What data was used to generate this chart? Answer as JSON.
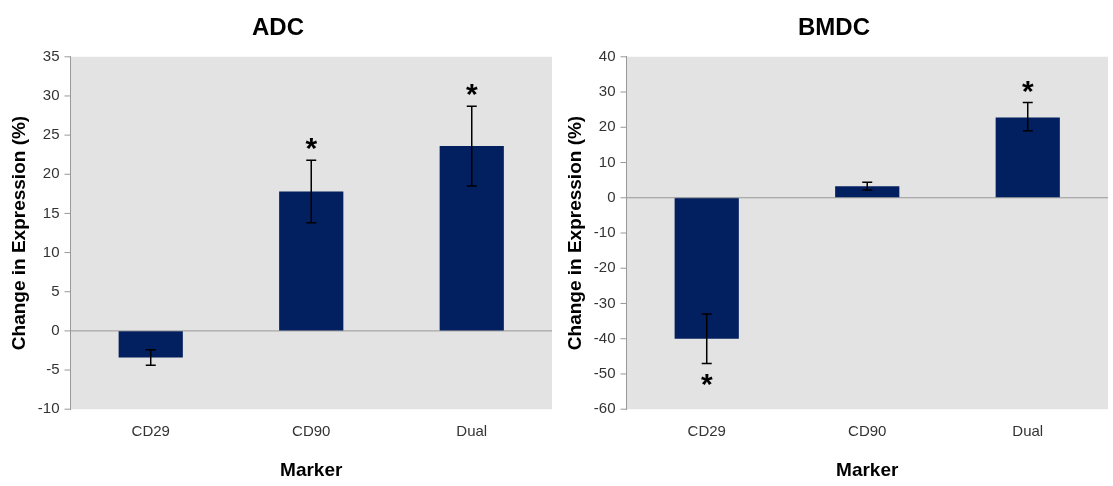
{
  "chart_data": [
    {
      "type": "bar",
      "title": "ADC",
      "xlabel": "Marker",
      "ylabel": "Change in Expression (%)",
      "categories": [
        "CD29",
        "CD90",
        "Dual"
      ],
      "values": [
        -3.4,
        17.8,
        23.6
      ],
      "errors": [
        [
          -4.4,
          -2.4
        ],
        [
          13.8,
          21.8
        ],
        [
          18.5,
          28.7
        ]
      ],
      "color": "#021f5f",
      "ylim": [
        -10,
        35
      ],
      "yticks": [
        -10,
        -5,
        0,
        5,
        10,
        15,
        20,
        25,
        30,
        35
      ],
      "legend": false,
      "annotations": [
        {
          "text": "*",
          "x": "CD90",
          "y": 21.8
        },
        {
          "text": "*",
          "x": "Dual",
          "y": 28.7
        }
      ]
    },
    {
      "type": "bar",
      "title": "BMDC",
      "xlabel": "Marker",
      "ylabel": "Change in Expression (%)",
      "categories": [
        "CD29",
        "CD90",
        "Dual"
      ],
      "values": [
        -40,
        3.3,
        22.8
      ],
      "errors": [
        [
          -47,
          -33
        ],
        [
          2.2,
          4.4
        ],
        [
          19,
          27
        ]
      ],
      "color": "#021f5f",
      "ylim": [
        -60,
        40
      ],
      "yticks": [
        -60,
        -50,
        -40,
        -30,
        -20,
        -10,
        0,
        10,
        20,
        30,
        40
      ],
      "legend": false,
      "annotations": [
        {
          "text": "*",
          "x": "CD29",
          "y": -47
        },
        {
          "text": "*",
          "x": "Dual",
          "y": 27
        }
      ]
    }
  ]
}
